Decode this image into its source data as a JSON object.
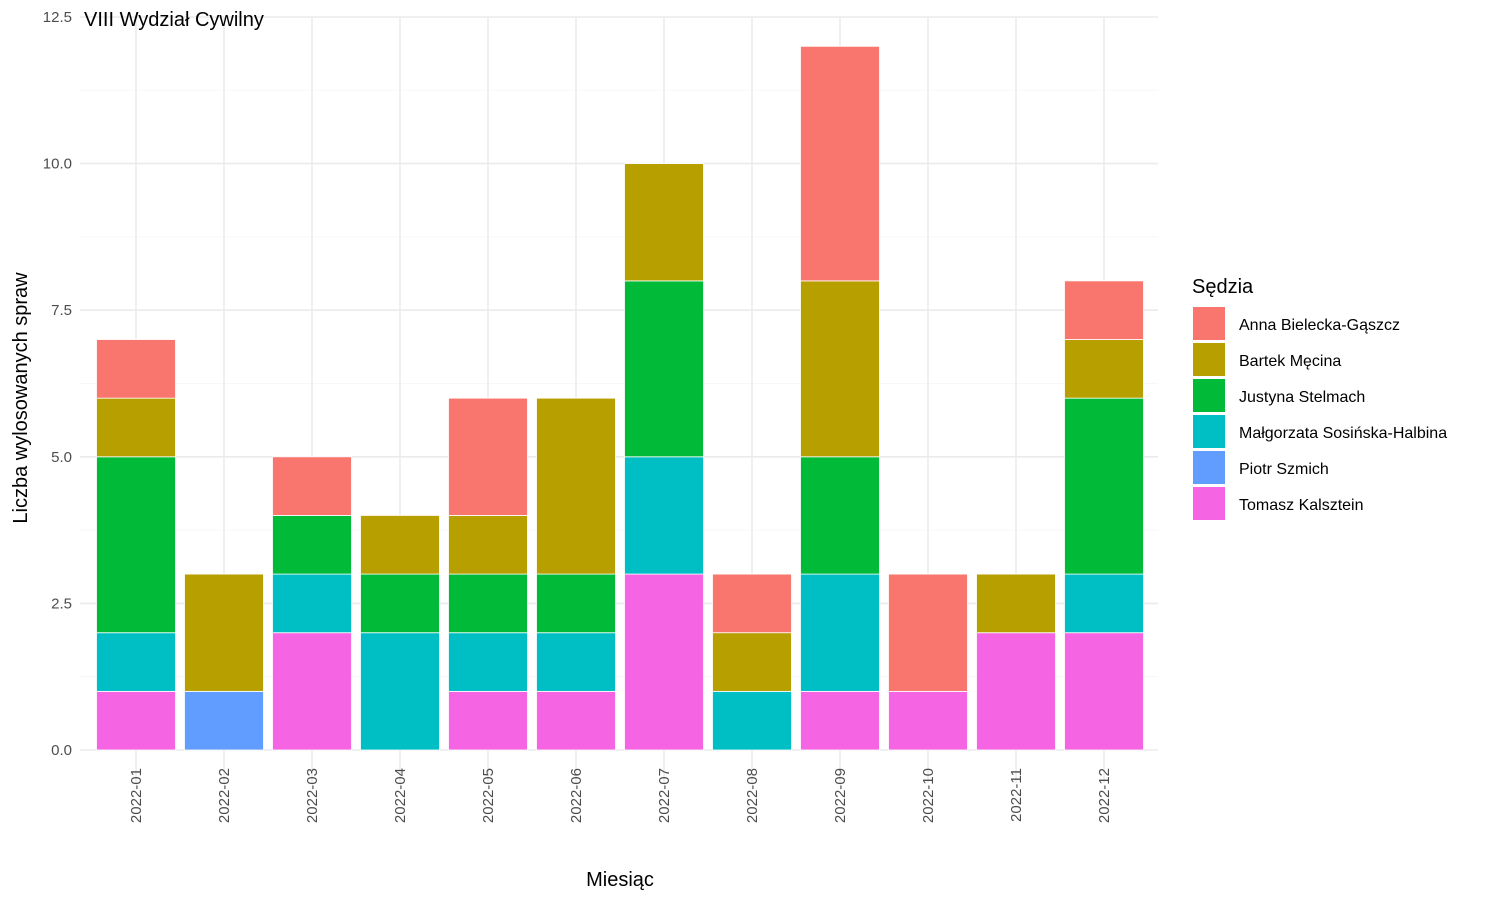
{
  "chart_data": {
    "type": "bar",
    "stacked": true,
    "title": "VIII Wydział Cywilny",
    "xlabel": "Miesiąc",
    "ylabel": "Liczba wylosowanych spraw",
    "ylim": [
      0,
      12.5
    ],
    "yticks": [
      "0.0",
      "2.5",
      "5.0",
      "7.5",
      "10.0",
      "12.5"
    ],
    "grid": true,
    "legend_position": "right",
    "legend_title": "Sędzia",
    "categories": [
      "2022-01",
      "2022-02",
      "2022-03",
      "2022-04",
      "2022-05",
      "2022-06",
      "2022-07",
      "2022-08",
      "2022-09",
      "2022-10",
      "2022-11",
      "2022-12"
    ],
    "series": [
      {
        "name": "Anna Bielecka-Gąszcz",
        "color": "#F8766D",
        "values": [
          1,
          0,
          1,
          0,
          2,
          0,
          0,
          1,
          4,
          2,
          0,
          1
        ]
      },
      {
        "name": "Bartek Męcina",
        "color": "#B79F00",
        "values": [
          1,
          2,
          0,
          1,
          1,
          3,
          2,
          1,
          3,
          0,
          1,
          1
        ]
      },
      {
        "name": "Justyna Stelmach",
        "color": "#00BA38",
        "values": [
          3,
          0,
          1,
          1,
          1,
          1,
          3,
          0,
          2,
          0,
          0,
          3
        ]
      },
      {
        "name": "Małgorzata Sosińska-Halbina",
        "color": "#00BFC4",
        "values": [
          1,
          0,
          1,
          2,
          1,
          1,
          2,
          1,
          2,
          0,
          0,
          1
        ]
      },
      {
        "name": "Piotr Szmich",
        "color": "#619CFF",
        "values": [
          0,
          1,
          0,
          0,
          0,
          0,
          0,
          0,
          0,
          0,
          0,
          0
        ]
      },
      {
        "name": "Tomasz Kalsztein",
        "color": "#F564E3",
        "values": [
          1,
          0,
          2,
          0,
          1,
          1,
          3,
          0,
          1,
          1,
          2,
          2
        ]
      }
    ]
  }
}
